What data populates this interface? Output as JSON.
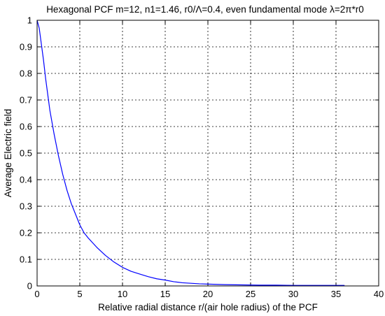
{
  "chart_data": {
    "type": "line",
    "title": "Hexagonal PCF m=12, n1=1.46, r0/Λ=0.4, even fundamental mode λ=2π*r0",
    "xlabel": "Relative radial distance r/(air hole radius) of the PCF",
    "ylabel": "Average Electric field",
    "xlim": [
      0,
      40
    ],
    "ylim": [
      0,
      1
    ],
    "xticks": [
      "0",
      "5",
      "10",
      "15",
      "20",
      "25",
      "30",
      "35",
      "40"
    ],
    "yticks": [
      "0",
      "0.1",
      "0.2",
      "0.3",
      "0.4",
      "0.5",
      "0.6",
      "0.7",
      "0.8",
      "0.9",
      "1"
    ],
    "grid": true,
    "legend": "none",
    "series": [
      {
        "color": "#0000ff",
        "x": [
          0,
          0.25,
          0.5,
          0.75,
          1.0,
          1.25,
          1.5,
          2.0,
          2.5,
          3.0,
          3.5,
          4.0,
          4.5,
          5.0,
          5.5,
          6.0,
          7.0,
          8.0,
          9.0,
          10.0,
          11.0,
          12.0,
          13.0,
          14.0,
          15.0,
          16.0,
          17.0,
          18.0,
          19.0,
          20.0,
          22.0,
          24.0,
          26.0,
          28.0,
          30.0,
          32.0,
          34.0,
          36.0
        ],
        "y": [
          1.0,
          0.97,
          0.91,
          0.85,
          0.78,
          0.72,
          0.66,
          0.57,
          0.49,
          0.42,
          0.36,
          0.31,
          0.27,
          0.23,
          0.2,
          0.18,
          0.145,
          0.115,
          0.09,
          0.07,
          0.055,
          0.045,
          0.035,
          0.027,
          0.022,
          0.016,
          0.012,
          0.01,
          0.008,
          0.007,
          0.005,
          0.004,
          0.003,
          0.003,
          0.002,
          0.002,
          0.002,
          0.002
        ]
      }
    ]
  }
}
